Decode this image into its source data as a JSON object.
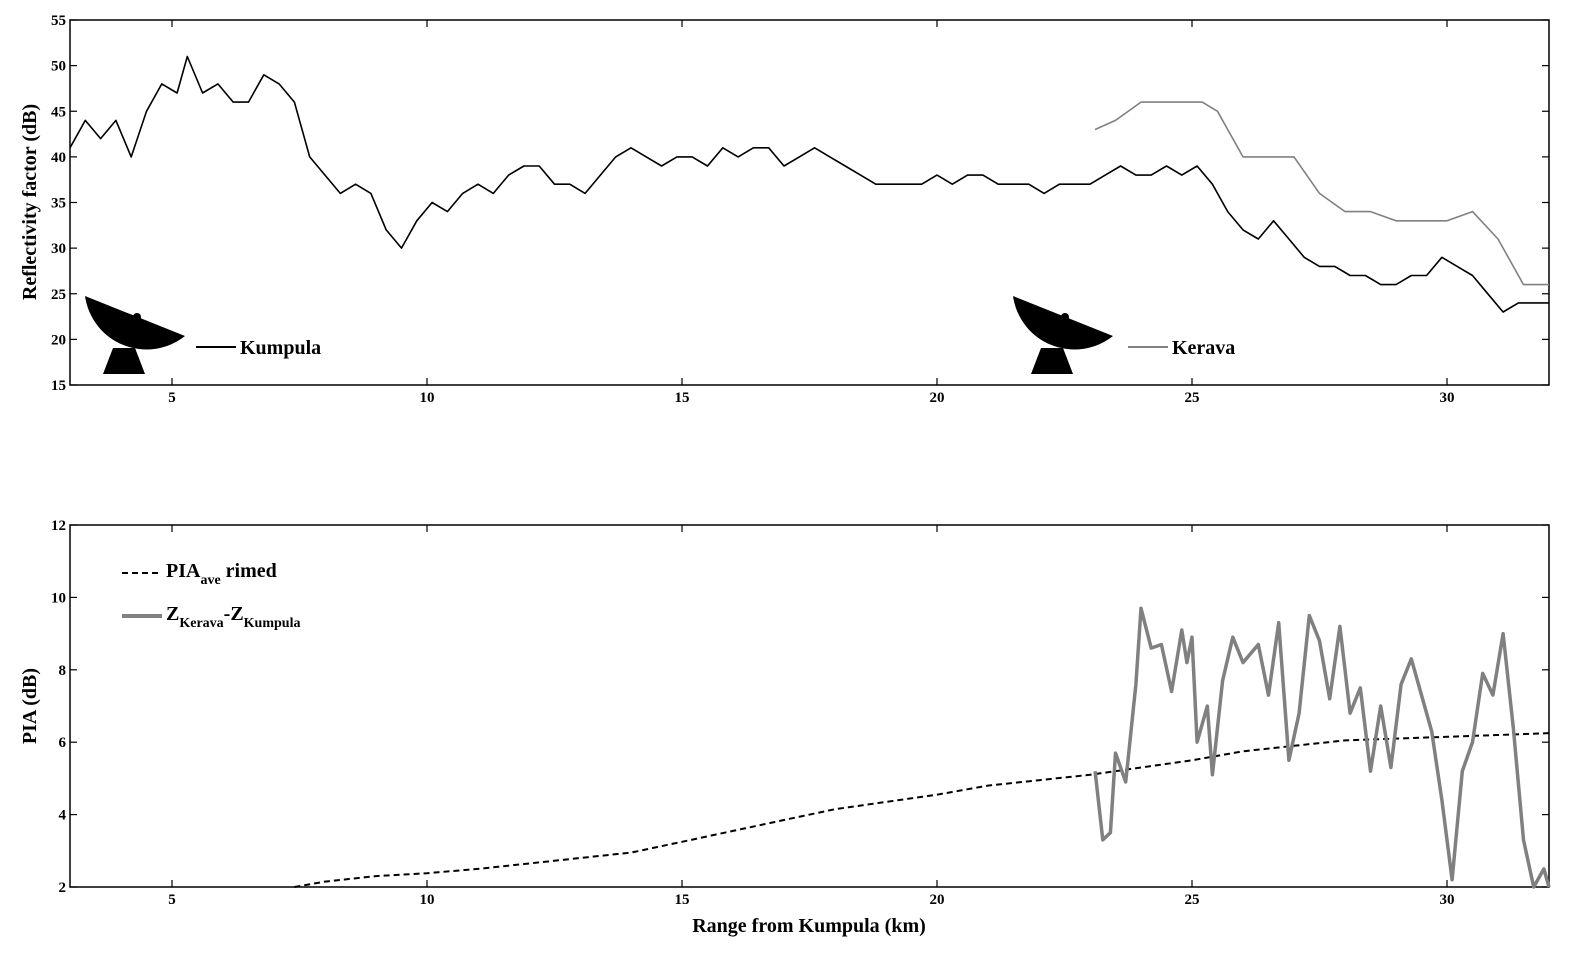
{
  "chart_data": [
    {
      "type": "line",
      "ylabel": "Reflectivity factor (dB)",
      "xlabel": "",
      "xlim": [
        3,
        32
      ],
      "ylim": [
        15,
        55
      ],
      "xticks": [
        5,
        10,
        15,
        20,
        25,
        30
      ],
      "yticks": [
        15,
        20,
        25,
        30,
        35,
        40,
        45,
        50,
        55
      ],
      "grid": false,
      "legend_placement": "inline bottom",
      "series": [
        {
          "name": "Kumpula",
          "color": "#000000",
          "points": [
            [
              3.0,
              41
            ],
            [
              3.3,
              44
            ],
            [
              3.6,
              42
            ],
            [
              3.9,
              44
            ],
            [
              4.2,
              40
            ],
            [
              4.5,
              45
            ],
            [
              4.8,
              48
            ],
            [
              5.1,
              47
            ],
            [
              5.3,
              51
            ],
            [
              5.6,
              47
            ],
            [
              5.9,
              48
            ],
            [
              6.2,
              46
            ],
            [
              6.5,
              46
            ],
            [
              6.8,
              49
            ],
            [
              7.1,
              48
            ],
            [
              7.4,
              46
            ],
            [
              7.7,
              40
            ],
            [
              8.0,
              38
            ],
            [
              8.3,
              36
            ],
            [
              8.6,
              37
            ],
            [
              8.9,
              36
            ],
            [
              9.2,
              32
            ],
            [
              9.5,
              30
            ],
            [
              9.8,
              33
            ],
            [
              10.1,
              35
            ],
            [
              10.4,
              34
            ],
            [
              10.7,
              36
            ],
            [
              11.0,
              37
            ],
            [
              11.3,
              36
            ],
            [
              11.6,
              38
            ],
            [
              11.9,
              39
            ],
            [
              12.2,
              39
            ],
            [
              12.5,
              37
            ],
            [
              12.8,
              37
            ],
            [
              13.1,
              36
            ],
            [
              13.4,
              38
            ],
            [
              13.7,
              40
            ],
            [
              14.0,
              41
            ],
            [
              14.3,
              40
            ],
            [
              14.6,
              39
            ],
            [
              14.9,
              40
            ],
            [
              15.2,
              40
            ],
            [
              15.5,
              39
            ],
            [
              15.8,
              41
            ],
            [
              16.1,
              40
            ],
            [
              16.4,
              41
            ],
            [
              16.7,
              41
            ],
            [
              17.0,
              39
            ],
            [
              17.3,
              40
            ],
            [
              17.6,
              41
            ],
            [
              17.9,
              40
            ],
            [
              18.2,
              39
            ],
            [
              18.5,
              38
            ],
            [
              18.8,
              37
            ],
            [
              19.1,
              37
            ],
            [
              19.4,
              37
            ],
            [
              19.7,
              37
            ],
            [
              20.0,
              38
            ],
            [
              20.3,
              37
            ],
            [
              20.6,
              38
            ],
            [
              20.9,
              38
            ],
            [
              21.2,
              37
            ],
            [
              21.5,
              37
            ],
            [
              21.8,
              37
            ],
            [
              22.1,
              36
            ],
            [
              22.4,
              37
            ],
            [
              22.7,
              37
            ],
            [
              23.0,
              37
            ],
            [
              23.3,
              38
            ],
            [
              23.6,
              39
            ],
            [
              23.9,
              38
            ],
            [
              24.2,
              38
            ],
            [
              24.5,
              39
            ],
            [
              24.8,
              38
            ],
            [
              25.1,
              39
            ],
            [
              25.4,
              37
            ],
            [
              25.7,
              34
            ],
            [
              26.0,
              32
            ],
            [
              26.3,
              31
            ],
            [
              26.6,
              33
            ],
            [
              26.9,
              31
            ],
            [
              27.2,
              29
            ],
            [
              27.5,
              28
            ],
            [
              27.8,
              28
            ],
            [
              28.1,
              27
            ],
            [
              28.4,
              27
            ],
            [
              28.7,
              26
            ],
            [
              29.0,
              26
            ],
            [
              29.3,
              27
            ],
            [
              29.6,
              27
            ],
            [
              29.9,
              29
            ],
            [
              30.2,
              28
            ],
            [
              30.5,
              27
            ],
            [
              30.8,
              25
            ],
            [
              31.1,
              23
            ],
            [
              31.4,
              24
            ],
            [
              31.7,
              24
            ],
            [
              32.0,
              24
            ]
          ]
        },
        {
          "name": "Kerava",
          "color": "#808080",
          "points": [
            [
              23.1,
              43
            ],
            [
              23.5,
              44
            ],
            [
              24.0,
              46
            ],
            [
              24.5,
              46
            ],
            [
              25.0,
              46
            ],
            [
              25.2,
              46
            ],
            [
              25.5,
              45
            ],
            [
              26.0,
              40
            ],
            [
              27.0,
              40
            ],
            [
              27.5,
              36
            ],
            [
              28.0,
              34
            ],
            [
              28.5,
              34
            ],
            [
              29.0,
              33
            ],
            [
              30.0,
              33
            ],
            [
              30.5,
              34
            ],
            [
              31.0,
              31
            ],
            [
              31.5,
              26
            ],
            [
              32.0,
              26
            ]
          ]
        }
      ]
    },
    {
      "type": "line",
      "ylabel": "PIA (dB)",
      "xlabel": "Range from Kumpula (km)",
      "xlim": [
        3,
        32
      ],
      "ylim": [
        2,
        12
      ],
      "xticks": [
        5,
        10,
        15,
        20,
        25,
        30
      ],
      "yticks": [
        2,
        4,
        6,
        8,
        10,
        12
      ],
      "grid": false,
      "legend_placement": "top-left",
      "series": [
        {
          "name": "PIA ave rimed",
          "legend_main": "PIA",
          "legend_sub": "ave",
          "legend_tail": " rimed",
          "color": "#000000",
          "style": "dashed",
          "points": [
            [
              7.4,
              2.0
            ],
            [
              8.0,
              2.15
            ],
            [
              9.0,
              2.3
            ],
            [
              10.0,
              2.38
            ],
            [
              11.0,
              2.5
            ],
            [
              12.0,
              2.65
            ],
            [
              13.0,
              2.8
            ],
            [
              14.0,
              2.95
            ],
            [
              15.0,
              3.25
            ],
            [
              16.0,
              3.55
            ],
            [
              17.0,
              3.85
            ],
            [
              18.0,
              4.15
            ],
            [
              19.0,
              4.35
            ],
            [
              20.0,
              4.55
            ],
            [
              21.0,
              4.8
            ],
            [
              22.0,
              4.95
            ],
            [
              23.0,
              5.1
            ],
            [
              24.0,
              5.3
            ],
            [
              25.0,
              5.5
            ],
            [
              26.0,
              5.75
            ],
            [
              27.0,
              5.9
            ],
            [
              28.0,
              6.05
            ],
            [
              29.0,
              6.1
            ],
            [
              30.0,
              6.15
            ],
            [
              31.0,
              6.2
            ],
            [
              32.0,
              6.25
            ]
          ]
        },
        {
          "name": "ZKerava-ZKumpula",
          "legend_main1": "Z",
          "legend_sub1": "Kerava",
          "legend_main2": "-Z",
          "legend_sub2": "Kumpula",
          "color": "#808080",
          "style": "solid",
          "points": [
            [
              23.1,
              5.2
            ],
            [
              23.25,
              3.3
            ],
            [
              23.4,
              3.5
            ],
            [
              23.5,
              5.7
            ],
            [
              23.7,
              4.9
            ],
            [
              23.9,
              7.6
            ],
            [
              24.0,
              9.7
            ],
            [
              24.2,
              8.6
            ],
            [
              24.4,
              8.7
            ],
            [
              24.6,
              7.4
            ],
            [
              24.8,
              9.1
            ],
            [
              24.9,
              8.2
            ],
            [
              25.0,
              8.9
            ],
            [
              25.1,
              6.0
            ],
            [
              25.3,
              7.0
            ],
            [
              25.4,
              5.1
            ],
            [
              25.6,
              7.7
            ],
            [
              25.8,
              8.9
            ],
            [
              26.0,
              8.2
            ],
            [
              26.3,
              8.7
            ],
            [
              26.5,
              7.3
            ],
            [
              26.7,
              9.3
            ],
            [
              26.9,
              5.5
            ],
            [
              27.1,
              6.8
            ],
            [
              27.3,
              9.5
            ],
            [
              27.5,
              8.8
            ],
            [
              27.7,
              7.2
            ],
            [
              27.9,
              9.2
            ],
            [
              28.1,
              6.8
            ],
            [
              28.3,
              7.5
            ],
            [
              28.5,
              5.2
            ],
            [
              28.7,
              7.0
            ],
            [
              28.9,
              5.3
            ],
            [
              29.1,
              7.6
            ],
            [
              29.3,
              8.3
            ],
            [
              29.5,
              7.3
            ],
            [
              29.7,
              6.3
            ],
            [
              29.9,
              4.4
            ],
            [
              30.1,
              2.2
            ],
            [
              30.3,
              5.2
            ],
            [
              30.5,
              6.0
            ],
            [
              30.7,
              7.9
            ],
            [
              30.9,
              7.3
            ],
            [
              31.1,
              9.0
            ],
            [
              31.3,
              6.4
            ],
            [
              31.5,
              3.3
            ],
            [
              31.7,
              2.0
            ],
            [
              31.9,
              2.5
            ],
            [
              32.0,
              2.0
            ]
          ]
        }
      ]
    }
  ]
}
